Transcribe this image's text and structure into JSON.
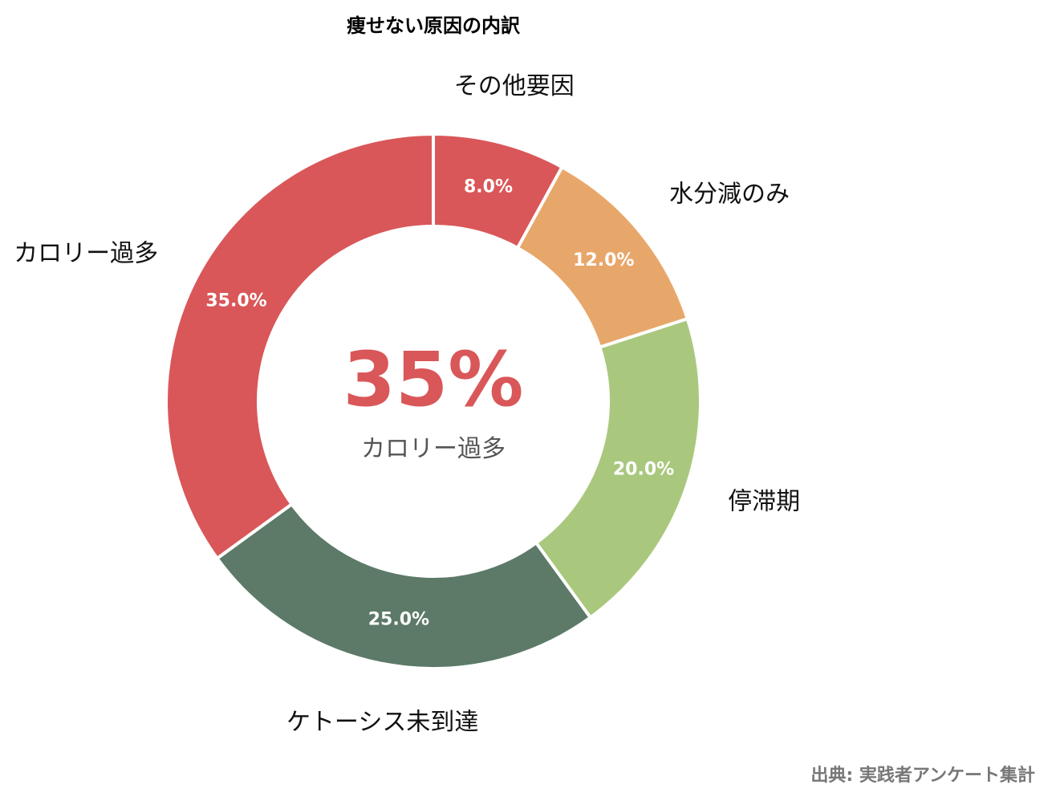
{
  "chart_data": {
    "type": "pie",
    "variant": "donut",
    "title": "痩せない原因の内訳",
    "categories": [
      "その他要因",
      "水分減のみ",
      "停滞期",
      "ケトーシス未到達",
      "カロリー過多"
    ],
    "values": [
      8.0,
      12.0,
      20.0,
      25.0,
      35.0
    ],
    "data_labels": [
      "8.0%",
      "12.0%",
      "20.0%",
      "25.0%",
      "35.0%"
    ],
    "colors": [
      "#D95759",
      "#E8A76A",
      "#A9C87E",
      "#5C7A67",
      "#D95759"
    ],
    "unit": "%",
    "direction": "clockwise",
    "start_position": "top",
    "center": {
      "value": "35%",
      "label": "カロリー過多",
      "value_color": "#D95759"
    },
    "legend": "none",
    "source_note": "出典: 実践者アンケート集計"
  }
}
